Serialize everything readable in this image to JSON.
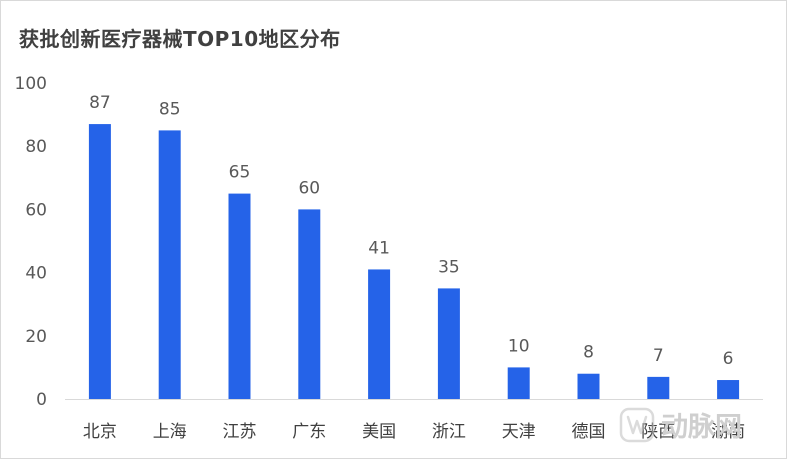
{
  "chart_data": {
    "type": "bar",
    "title": "获批创新医疗器械TOP10地区分布",
    "categories": [
      "北京",
      "上海",
      "江苏",
      "广东",
      "美国",
      "浙江",
      "天津",
      "德国",
      "陕西",
      "湖南"
    ],
    "values": [
      87,
      85,
      65,
      60,
      41,
      35,
      10,
      8,
      7,
      6
    ],
    "ylim": [
      0,
      100
    ],
    "yticks": [
      0,
      20,
      40,
      60,
      80,
      100
    ],
    "xlabel": "",
    "ylabel": "",
    "grid": false,
    "bar_color": "#2563e8"
  },
  "watermark": {
    "text": "动脉网",
    "icon": "arterial-network-logo-icon"
  }
}
